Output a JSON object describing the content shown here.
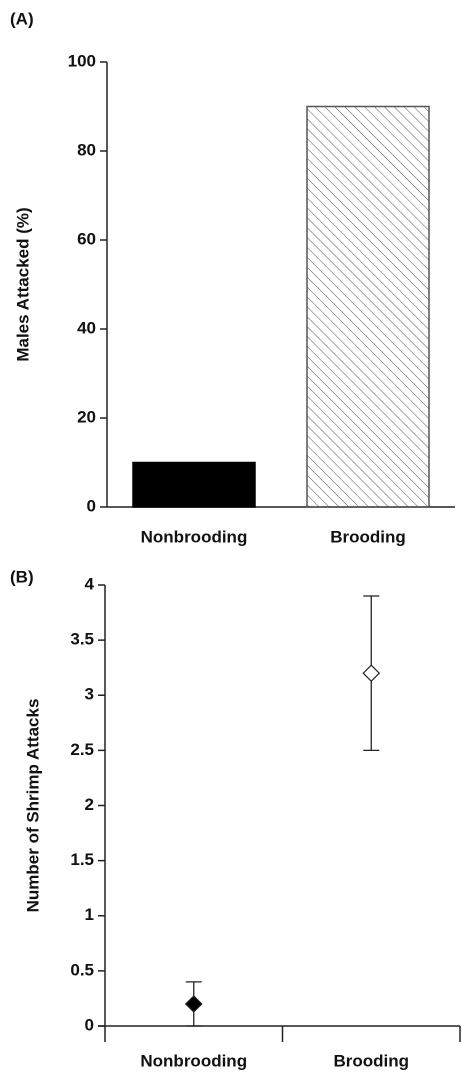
{
  "chart_data": [
    {
      "type": "bar",
      "panel_label": "(A)",
      "y_label": "Males Attacked (%)",
      "categories": [
        "Nonbrooding",
        "Brooding"
      ],
      "values": [
        10,
        90
      ],
      "colors": [
        "#000000",
        "#555555"
      ],
      "patterns": [
        "solid",
        "hatch"
      ],
      "ylim": [
        0,
        100
      ],
      "yticks": [
        0,
        20,
        40,
        60,
        80,
        100
      ]
    },
    {
      "type": "errorpoint",
      "panel_label": "(B)",
      "y_label": "Number of Shrimp Attacks",
      "categories": [
        "Nonbrooding",
        "Brooding"
      ],
      "values": [
        0.2,
        3.2
      ],
      "errors": [
        0.2,
        0.7
      ],
      "colors": [
        "#000000",
        "#ffffff"
      ],
      "ylim": [
        0,
        4
      ],
      "yticks": [
        0,
        0.5,
        1,
        1.5,
        2,
        2.5,
        3,
        3.5,
        4
      ]
    }
  ]
}
